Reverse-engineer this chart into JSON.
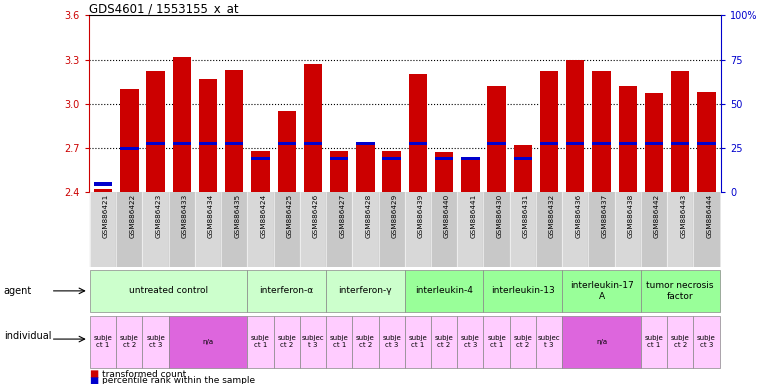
{
  "title": "GDS4601 / 1553155_x_at",
  "bar_labels": [
    "GSM886421",
    "GSM886422",
    "GSM886423",
    "GSM886433",
    "GSM886434",
    "GSM886435",
    "GSM886424",
    "GSM886425",
    "GSM886426",
    "GSM886427",
    "GSM886428",
    "GSM886429",
    "GSM886439",
    "GSM886440",
    "GSM886441",
    "GSM886430",
    "GSM886431",
    "GSM886432",
    "GSM886436",
    "GSM886437",
    "GSM886438",
    "GSM886442",
    "GSM886443",
    "GSM886444"
  ],
  "bar_values": [
    2.42,
    3.1,
    3.22,
    3.32,
    3.17,
    3.23,
    2.68,
    2.95,
    3.27,
    2.68,
    2.72,
    2.68,
    3.2,
    2.67,
    2.63,
    3.12,
    2.72,
    3.22,
    3.3,
    3.22,
    3.12,
    3.07,
    3.22,
    3.08
  ],
  "percentile_positions": [
    2.455,
    2.695,
    2.73,
    2.73,
    2.73,
    2.73,
    2.63,
    2.73,
    2.73,
    2.63,
    2.73,
    2.63,
    2.73,
    2.63,
    2.63,
    2.73,
    2.63,
    2.73,
    2.73,
    2.73,
    2.73,
    2.73,
    2.73,
    2.73
  ],
  "y_min": 2.4,
  "y_max": 3.6,
  "y_ticks_left": [
    2.4,
    2.7,
    3.0,
    3.3,
    3.6
  ],
  "y_ticks_right_labels": [
    "0",
    "25",
    "50",
    "75",
    "100%"
  ],
  "y_ticks_right_positions": [
    2.4,
    2.7,
    3.0,
    3.3,
    3.6
  ],
  "bar_color": "#cc0000",
  "percentile_color": "#0000cc",
  "agent_groups": [
    {
      "label": "untreated control",
      "start": 0,
      "end": 5,
      "color": "#ccffcc"
    },
    {
      "label": "interferon-α",
      "start": 6,
      "end": 8,
      "color": "#ccffcc"
    },
    {
      "label": "interferon-γ",
      "start": 9,
      "end": 11,
      "color": "#ccffcc"
    },
    {
      "label": "interleukin-4",
      "start": 12,
      "end": 14,
      "color": "#99ff99"
    },
    {
      "label": "interleukin-13",
      "start": 15,
      "end": 17,
      "color": "#99ff99"
    },
    {
      "label": "interleukin-17\nA",
      "start": 18,
      "end": 20,
      "color": "#99ff99"
    },
    {
      "label": "tumor necrosis\nfactor",
      "start": 21,
      "end": 23,
      "color": "#99ff99"
    }
  ],
  "individual_groups": [
    {
      "label": "subje\nct 1",
      "start": 0,
      "end": 0,
      "color": "#ffccff"
    },
    {
      "label": "subje\nct 2",
      "start": 1,
      "end": 1,
      "color": "#ffccff"
    },
    {
      "label": "subje\nct 3",
      "start": 2,
      "end": 2,
      "color": "#ffccff"
    },
    {
      "label": "n/a",
      "start": 3,
      "end": 5,
      "color": "#dd66dd"
    },
    {
      "label": "subje\nct 1",
      "start": 6,
      "end": 6,
      "color": "#ffccff"
    },
    {
      "label": "subje\nct 2",
      "start": 7,
      "end": 7,
      "color": "#ffccff"
    },
    {
      "label": "subjec\nt 3",
      "start": 8,
      "end": 8,
      "color": "#ffccff"
    },
    {
      "label": "subje\nct 1",
      "start": 9,
      "end": 9,
      "color": "#ffccff"
    },
    {
      "label": "subje\nct 2",
      "start": 10,
      "end": 10,
      "color": "#ffccff"
    },
    {
      "label": "subje\nct 3",
      "start": 11,
      "end": 11,
      "color": "#ffccff"
    },
    {
      "label": "subje\nct 1",
      "start": 12,
      "end": 12,
      "color": "#ffccff"
    },
    {
      "label": "subje\nct 2",
      "start": 13,
      "end": 13,
      "color": "#ffccff"
    },
    {
      "label": "subje\nct 3",
      "start": 14,
      "end": 14,
      "color": "#ffccff"
    },
    {
      "label": "subje\nct 1",
      "start": 15,
      "end": 15,
      "color": "#ffccff"
    },
    {
      "label": "subje\nct 2",
      "start": 16,
      "end": 16,
      "color": "#ffccff"
    },
    {
      "label": "subjec\nt 3",
      "start": 17,
      "end": 17,
      "color": "#ffccff"
    },
    {
      "label": "n/a",
      "start": 18,
      "end": 20,
      "color": "#dd66dd"
    },
    {
      "label": "subje\nct 1",
      "start": 21,
      "end": 21,
      "color": "#ffccff"
    },
    {
      "label": "subje\nct 2",
      "start": 22,
      "end": 22,
      "color": "#ffccff"
    },
    {
      "label": "subje\nct 3",
      "start": 23,
      "end": 23,
      "color": "#ffccff"
    }
  ],
  "background_color": "#ffffff",
  "tick_color_left": "#cc0000",
  "tick_color_right": "#0000cc",
  "legend_items": [
    {
      "label": "transformed count",
      "color": "#cc0000"
    },
    {
      "label": "percentile rank within the sample",
      "color": "#0000cc"
    }
  ]
}
